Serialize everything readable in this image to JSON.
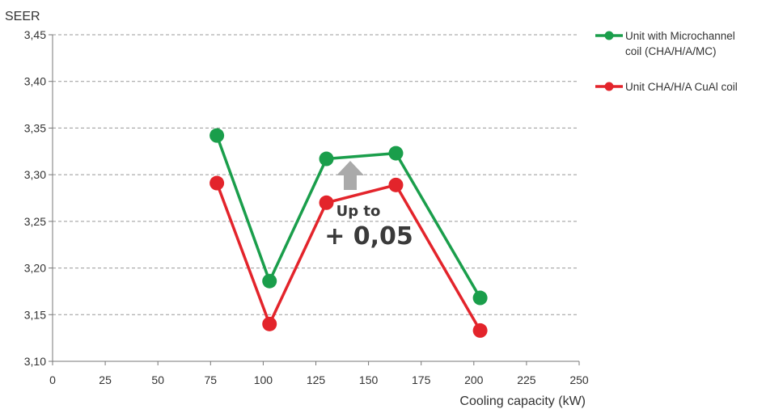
{
  "chart_data": {
    "type": "line",
    "ylabel": "SEER",
    "xlabel": "Cooling capacity (kW)",
    "xlim": [
      0,
      250
    ],
    "ylim": [
      3.1,
      3.45
    ],
    "x_ticks": [
      "0",
      "25",
      "50",
      "75",
      "100",
      "125",
      "150",
      "175",
      "200",
      "225",
      "250"
    ],
    "y_ticks": [
      "3,10",
      "3,15",
      "3,20",
      "3,25",
      "3,30",
      "3,35",
      "3,40",
      "3,45"
    ],
    "grid": "horizontal dashed",
    "legend_position": "right",
    "series": [
      {
        "name": "Unit with Microchannel coil (CHA/H/A/MC)",
        "legend_lines": [
          "Unit with Microchannel",
          "coil (CHA/H/A/MC)"
        ],
        "color": "#1a9e4b",
        "x": [
          78,
          103,
          130,
          163,
          203
        ],
        "y": [
          3.342,
          3.186,
          3.317,
          3.323,
          3.168
        ]
      },
      {
        "name": "Unit CHA/H/A CuAl coil",
        "legend_lines": [
          "Unit CHA/H/A CuAl coil"
        ],
        "color": "#e3242b",
        "x": [
          78,
          103,
          130,
          163,
          203
        ],
        "y": [
          3.291,
          3.14,
          3.27,
          3.289,
          3.133
        ]
      }
    ],
    "annotation": {
      "line1": "Up to",
      "line2": "+ 0,05",
      "arrow_direction": "up",
      "arrow_color": "#aaaaaa"
    }
  }
}
